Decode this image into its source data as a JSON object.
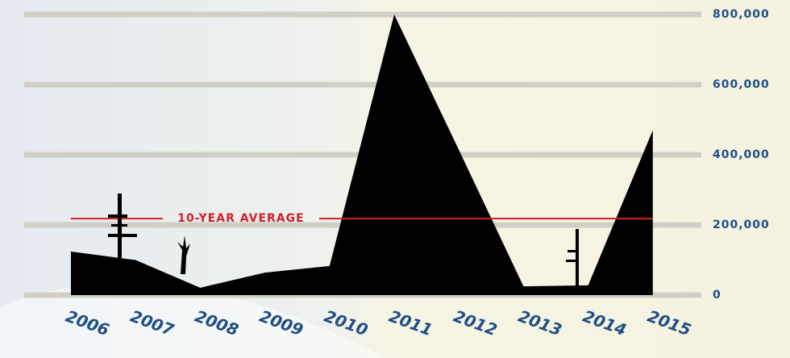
{
  "chart_data": {
    "type": "area",
    "categories": [
      "2006",
      "2007",
      "2008",
      "2009",
      "2010",
      "2011",
      "2012",
      "2013",
      "2014",
      "2015"
    ],
    "values": [
      124000,
      100000,
      21000,
      64000,
      83000,
      800000,
      414000,
      25000,
      28000,
      470000
    ],
    "color": "#000000",
    "ylim": [
      0,
      800000
    ],
    "yticks": [
      0,
      {
        "value": 200000,
        "label": "200,000"
      },
      {
        "value": 400000,
        "label": "400,000"
      },
      {
        "value": 600000,
        "label": "600,000"
      },
      {
        "value": 800000,
        "label": "800,000"
      }
    ],
    "grid": true,
    "reference_line": {
      "label": "10-YEAR AVERAGE",
      "value": 218000,
      "color": "#d0202a"
    }
  }
}
